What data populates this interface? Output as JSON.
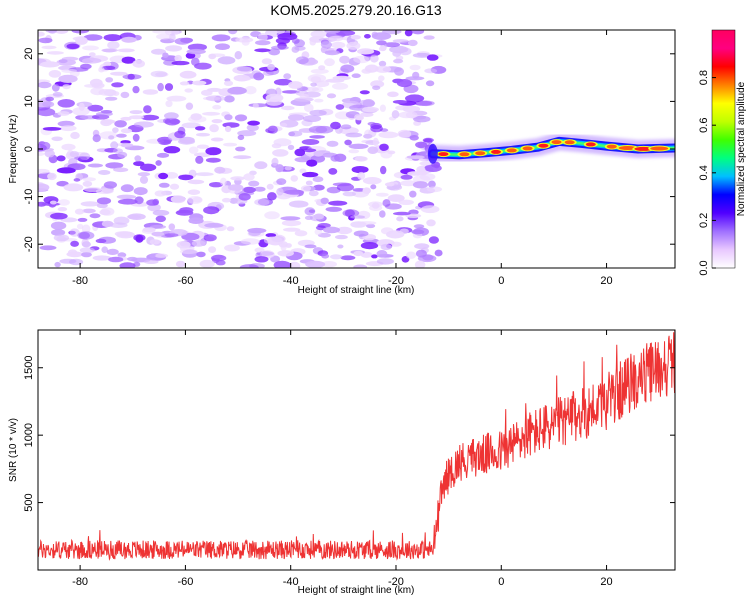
{
  "title": "KOM5.2025.279.20.16.G13",
  "chart_data": [
    {
      "type": "heatmap",
      "name": "spectrogram",
      "xlabel": "Height of straight line (km)",
      "ylabel": "Frequency (Hz)",
      "xlim": [
        -88,
        33
      ],
      "ylim": [
        -25,
        25
      ],
      "xticks": [
        -80,
        -60,
        -40,
        -20,
        0,
        20
      ],
      "yticks": [
        -20,
        -10,
        0,
        10,
        20
      ],
      "noise_region_x": [
        -88,
        -13
      ],
      "signal_region_x": [
        -13,
        33
      ],
      "signal_frequency_track": [
        {
          "x": -13,
          "y": -1.0
        },
        {
          "x": -8,
          "y": -1.2
        },
        {
          "x": -3,
          "y": -0.8
        },
        {
          "x": 2,
          "y": -0.3
        },
        {
          "x": 7,
          "y": 0.4
        },
        {
          "x": 11,
          "y": 1.6
        },
        {
          "x": 15,
          "y": 1.2
        },
        {
          "x": 20,
          "y": 0.6
        },
        {
          "x": 26,
          "y": 0.0
        },
        {
          "x": 33,
          "y": 0.2
        }
      ],
      "colorbar": {
        "label": "Normalized spectral amplitude",
        "range": [
          0,
          1
        ],
        "ticks": [
          "0.0",
          "0.2",
          "0.4",
          "0.6",
          "0.8"
        ],
        "tick_values": [
          0.0,
          0.2,
          0.4,
          0.6,
          0.8
        ],
        "colors": [
          "#ffffff",
          "#e8c8ff",
          "#a070ff",
          "#5000ff",
          "#0000ff",
          "#00c0ff",
          "#00ff80",
          "#40ff00",
          "#c0ff00",
          "#ffff00",
          "#ff8000",
          "#ff0000",
          "#ff0080",
          "#ff0060"
        ]
      }
    },
    {
      "type": "line",
      "name": "snr",
      "xlabel": "Height of straight line (km)",
      "ylabel": "SNR (10 * v/v)",
      "xlim": [
        -88,
        33
      ],
      "ylim": [
        0,
        1780
      ],
      "xticks": [
        -80,
        -60,
        -40,
        -20,
        0,
        20
      ],
      "yticks": [
        500,
        1000,
        1500
      ],
      "series": [
        {
          "name": "SNR",
          "color": "#ee3333",
          "x": [
            -88,
            -70,
            -50,
            -30,
            -13,
            -11,
            -8,
            -4,
            0,
            5,
            10,
            15,
            20,
            25,
            30,
            33
          ],
          "y": [
            150,
            150,
            150,
            150,
            150,
            650,
            800,
            850,
            880,
            1000,
            1080,
            1150,
            1250,
            1400,
            1500,
            1550
          ]
        }
      ]
    }
  ]
}
